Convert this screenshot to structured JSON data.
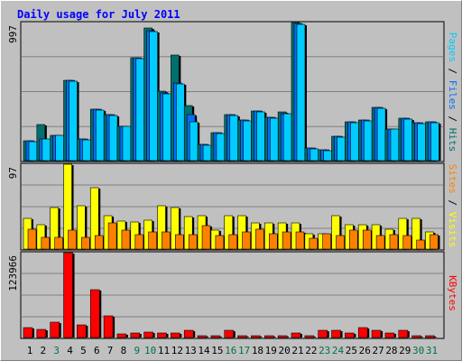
{
  "chart_data": {
    "type": "bar",
    "title": "Daily usage for July 2011",
    "colors": {
      "background": "#c0c0c0",
      "plot_bg": "#c0c0c0",
      "title": "#0000ff",
      "hits": "#006f6f",
      "files": "#0070ff",
      "pages": "#00ccff",
      "visits": "#ffff00",
      "sites": "#ff8000",
      "kbytes": "#ff0000",
      "gridline": "#808080",
      "weekday_label": "#000000",
      "weekend_label": "#00704a"
    },
    "days": [
      {
        "label": "1",
        "weekend": false
      },
      {
        "label": "2",
        "weekend": false
      },
      {
        "label": "3",
        "weekend": true
      },
      {
        "label": "4",
        "weekend": false
      },
      {
        "label": "5",
        "weekend": false
      },
      {
        "label": "6",
        "weekend": false
      },
      {
        "label": "7",
        "weekend": false
      },
      {
        "label": "8",
        "weekend": false
      },
      {
        "label": "9",
        "weekend": true
      },
      {
        "label": "10",
        "weekend": true
      },
      {
        "label": "11",
        "weekend": false
      },
      {
        "label": "12",
        "weekend": false
      },
      {
        "label": "13",
        "weekend": false
      },
      {
        "label": "14",
        "weekend": false
      },
      {
        "label": "15",
        "weekend": false
      },
      {
        "label": "16",
        "weekend": true
      },
      {
        "label": "17",
        "weekend": true
      },
      {
        "label": "18",
        "weekend": false
      },
      {
        "label": "19",
        "weekend": false
      },
      {
        "label": "20",
        "weekend": false
      },
      {
        "label": "21",
        "weekend": false
      },
      {
        "label": "22",
        "weekend": false
      },
      {
        "label": "23",
        "weekend": true
      },
      {
        "label": "24",
        "weekend": true
      },
      {
        "label": "25",
        "weekend": false
      },
      {
        "label": "26",
        "weekend": false
      },
      {
        "label": "27",
        "weekend": false
      },
      {
        "label": "28",
        "weekend": false
      },
      {
        "label": "29",
        "weekend": false
      },
      {
        "label": "30",
        "weekend": true
      },
      {
        "label": "31",
        "weekend": true
      }
    ],
    "panels": [
      {
        "id": "top",
        "max_label": "997",
        "ylim": [
          0,
          997
        ],
        "legend": [
          {
            "text": "Pages",
            "color": "#00ccff"
          },
          {
            "text": " / ",
            "color": "#000000"
          },
          {
            "text": "Files",
            "color": "#0070ff"
          },
          {
            "text": " / ",
            "color": "#000000"
          },
          {
            "text": "Hits",
            "color": "#006f6f"
          }
        ],
        "series": [
          {
            "name": "Hits",
            "color": "#006f6f",
            "values": [
              146,
              260,
              185,
              580,
              155,
              370,
              330,
              250,
              740,
              960,
              500,
              760,
              400,
              120,
              200,
              330,
              290,
              360,
              310,
              350,
              997,
              90,
              75,
              175,
              280,
              290,
              385,
              230,
              305,
              275,
              280
            ]
          },
          {
            "name": "Files",
            "color": "#0070ff",
            "values": [
              146,
              155,
              185,
              580,
              155,
              370,
              330,
              250,
              740,
              940,
              490,
              560,
              330,
              120,
              200,
              330,
              290,
              360,
              310,
              340,
              990,
              90,
              75,
              175,
              280,
              290,
              385,
              230,
              305,
              275,
              280
            ]
          },
          {
            "name": "Pages",
            "color": "#00ccff",
            "values": [
              140,
              155,
              180,
              575,
              150,
              365,
              325,
              245,
              735,
              935,
              485,
              555,
              280,
              110,
              195,
              325,
              285,
              355,
              305,
              340,
              985,
              85,
              70,
              170,
              275,
              285,
              380,
              225,
              300,
              270,
              275
            ]
          }
        ]
      },
      {
        "id": "middle",
        "max_label": "97",
        "ylim": [
          0,
          97
        ],
        "legend": [
          {
            "text": "Sites",
            "color": "#ff8000"
          },
          {
            "text": " / ",
            "color": "#000000"
          },
          {
            "text": "Visits",
            "color": "#ffff00"
          }
        ],
        "series": [
          {
            "name": "Visits",
            "color": "#ffff00",
            "values": [
              35,
              28,
              47,
              97,
              50,
              70,
              38,
              32,
              31,
              33,
              50,
              47,
              37,
              38,
              22,
              38,
              38,
              30,
              30,
              30,
              30,
              18,
              18,
              38,
              28,
              28,
              28,
              23,
              35,
              35,
              20
            ]
          },
          {
            "name": "Sites",
            "color": "#ff8000",
            "values": [
              23,
              13,
              13,
              22,
              13,
              15,
              30,
              22,
              17,
              20,
              20,
              17,
              17,
              27,
              15,
              16,
              20,
              23,
              18,
              20,
              20,
              12,
              18,
              15,
              22,
              22,
              15,
              17,
              15,
              10,
              17
            ]
          }
        ]
      },
      {
        "id": "bottom",
        "max_label": "123966",
        "ylim": [
          0,
          123966
        ],
        "legend": [
          {
            "text": "KBytes",
            "color": "#ff0000"
          }
        ],
        "series": [
          {
            "name": "KBytes",
            "color": "#ff0000",
            "values": [
              14000,
              12000,
              22000,
              123966,
              18000,
              70000,
              31000,
              5000,
              7000,
              8000,
              6000,
              7000,
              11000,
              3000,
              3000,
              11000,
              3000,
              3000,
              3000,
              3000,
              7000,
              3000,
              11000,
              10000,
              7000,
              15000,
              11000,
              6000,
              10000,
              3000,
              3000
            ]
          }
        ]
      }
    ]
  }
}
